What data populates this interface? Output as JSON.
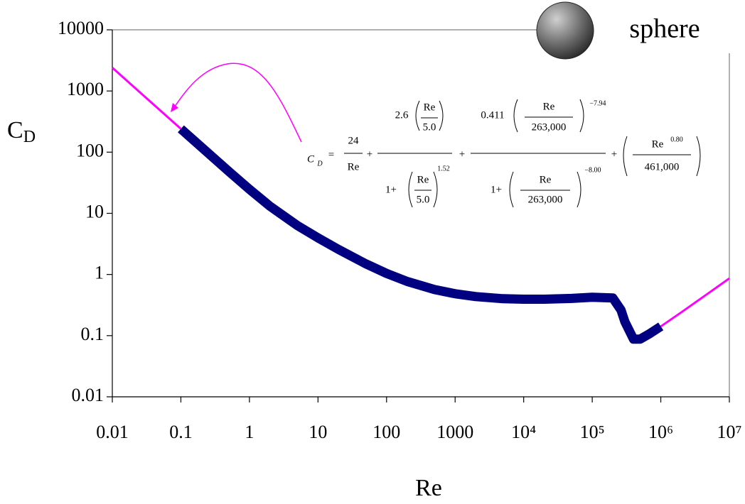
{
  "chart_data": {
    "type": "line",
    "y_label": {
      "main": "C",
      "sub": "D"
    },
    "x_label": "Re",
    "annotation": "sphere",
    "equation": [
      "C",
      "D",
      "=",
      "24",
      "Re",
      "+",
      "2.6",
      "Re",
      "5.0",
      "1+",
      "Re",
      "5.0",
      "1.52",
      "+",
      "0.411",
      "Re",
      "263,000",
      "−7.94",
      "1+",
      "Re",
      "263,000",
      "−8.00",
      "+",
      "Re",
      "0.80",
      "461,000"
    ],
    "xscale": "log",
    "yscale": "log",
    "xlim": [
      0.01,
      10000000
    ],
    "ylim": [
      0.01,
      10000
    ],
    "xticks": [
      0.01,
      0.1,
      1,
      10,
      100,
      1000,
      {
        "value": 10000,
        "label": "10⁴"
      },
      {
        "value": 100000,
        "label": "10⁵"
      },
      {
        "value": 1000000,
        "label": "10⁶"
      },
      {
        "value": 10000000,
        "label": "10⁷"
      }
    ],
    "yticks": [
      0.01,
      0.1,
      1,
      10,
      100,
      1000,
      10000
    ],
    "series": [
      {
        "color": "#000080",
        "width": "thick",
        "x": [
          0.1,
          0.2,
          0.5,
          1,
          2,
          5,
          10,
          20,
          50,
          100,
          200,
          500,
          1000,
          2000,
          5000,
          10000,
          20000,
          50000,
          100000,
          200000,
          263000,
          300000,
          400000,
          500000,
          700000,
          1000000
        ],
        "values": [
          240.2,
          120.3,
          48.44,
          24.67,
          13.04,
          6.31,
          3.97,
          2.56,
          1.49,
          1.04,
          0.768,
          0.567,
          0.484,
          0.435,
          0.402,
          0.394,
          0.394,
          0.406,
          0.424,
          0.412,
          0.262,
          0.168,
          0.0875,
          0.0876,
          0.109,
          0.1415
        ]
      },
      {
        "color": "#ff00ff",
        "width": "thin",
        "x": [
          0.01,
          0.03,
          0.1,
          1000,
          1000000,
          2000000,
          5000000,
          10000000
        ],
        "values": [
          2400,
          800.2,
          240.2,
          null,
          0.1415,
          0.242,
          0.499,
          0.865
        ]
      }
    ]
  }
}
